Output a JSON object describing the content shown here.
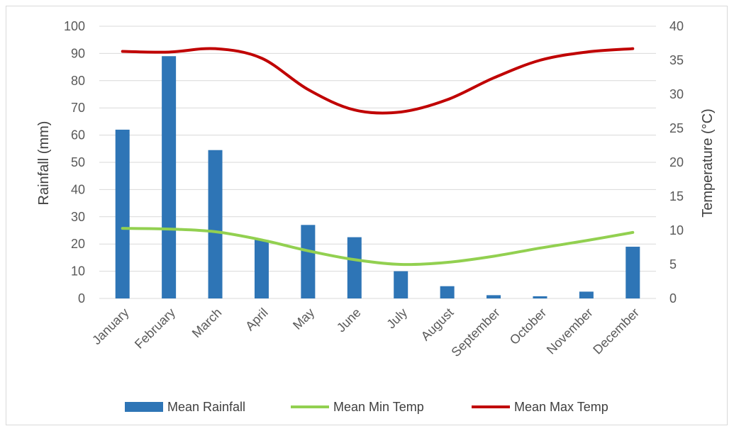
{
  "chart_data": {
    "type": "bar+line",
    "categories": [
      "January",
      "February",
      "March",
      "April",
      "May",
      "June",
      "July",
      "August",
      "September",
      "October",
      "November",
      "December"
    ],
    "series": [
      {
        "name": "Mean Rainfall",
        "axis": "left",
        "kind": "bar",
        "color": "#2e75b6",
        "values": [
          62,
          89,
          54.5,
          21.5,
          27,
          22.5,
          10,
          4.5,
          1.2,
          0.8,
          2.5,
          19
        ]
      },
      {
        "name": "Mean Min Temp",
        "axis": "right",
        "kind": "line",
        "color": "#92d050",
        "values": [
          10.3,
          10.2,
          9.8,
          8.6,
          7.0,
          5.7,
          5.0,
          5.3,
          6.2,
          7.4,
          8.5,
          9.7
        ]
      },
      {
        "name": "Mean Max Temp",
        "axis": "right",
        "kind": "line",
        "color": "#c00000",
        "values": [
          36.3,
          36.2,
          36.7,
          35.3,
          30.7,
          27.7,
          27.4,
          29.2,
          32.4,
          35.0,
          36.2,
          36.7
        ]
      }
    ],
    "ylabel": "Rainfall (mm)",
    "y2label": "Temperature (°C)",
    "ylim": [
      0,
      100
    ],
    "y2lim": [
      0,
      40
    ],
    "yticks": [
      "0",
      "10",
      "20",
      "30",
      "40",
      "50",
      "60",
      "70",
      "80",
      "90",
      "100"
    ],
    "y2ticks": [
      "0",
      "5",
      "10",
      "15",
      "20",
      "25",
      "30",
      "35",
      "40"
    ],
    "grid": true,
    "legend": "bottom"
  }
}
